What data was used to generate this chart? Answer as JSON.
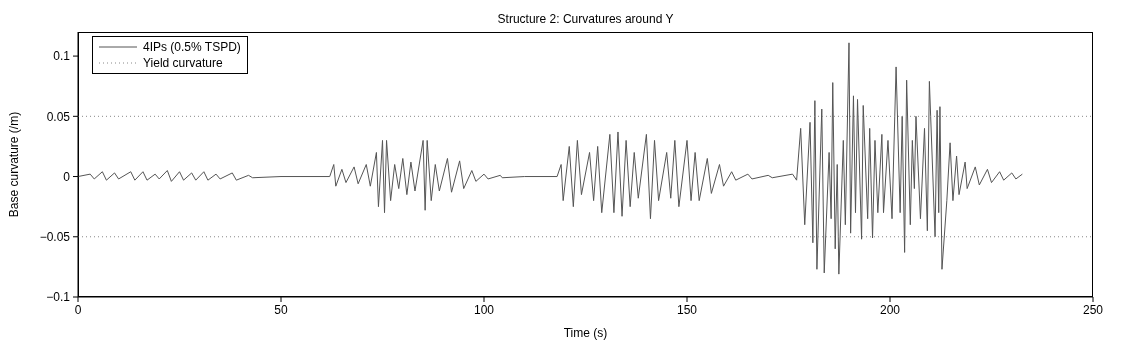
{
  "chart_data": {
    "type": "line",
    "title": "Structure 2: Curvatures around Y",
    "xlabel": "Time (s)",
    "ylabel": "Base curvature (/m)",
    "xlim": [
      0,
      250
    ],
    "xticks": [
      0,
      50,
      100,
      150,
      200,
      250
    ],
    "ylim": [
      -0.1,
      0.12
    ],
    "yticks": [
      -0.1,
      -0.05,
      0,
      0.05,
      0.1
    ],
    "legend": "top left",
    "marker": "none",
    "series": [
      {
        "name": "4IPs (0.5% TSPD)",
        "color": "#555555",
        "line_style": "solid",
        "x": [
          0,
          3,
          4,
          6,
          7,
          9,
          10,
          13,
          14,
          16,
          17,
          19,
          20,
          22,
          23,
          25,
          26,
          28,
          29,
          31,
          32,
          34,
          35,
          38,
          39,
          42,
          43,
          50,
          62,
          63,
          63.5,
          65,
          66,
          68,
          69,
          71,
          72,
          73.5,
          74,
          75,
          75.5,
          76,
          77,
          78,
          79,
          80,
          81,
          82,
          83,
          85,
          85.5,
          86,
          87,
          88,
          89,
          91,
          92,
          94,
          95,
          97,
          98,
          100,
          101,
          104,
          104.5,
          110,
          118,
          119,
          119.5,
          121,
          122,
          123,
          124,
          126,
          127,
          128,
          129,
          131,
          132,
          133,
          134,
          135,
          136,
          137,
          138,
          140,
          141,
          142,
          143,
          145,
          146,
          147,
          148,
          150,
          151,
          152,
          153,
          155,
          156,
          158,
          159,
          161,
          162,
          165,
          166,
          170,
          171,
          176,
          177,
          178,
          179,
          180.3,
          181,
          181.5,
          182,
          183.2,
          183.8,
          185,
          185.5,
          185.9,
          186.5,
          187,
          187.4,
          188.5,
          189,
          189.9,
          190.3,
          191,
          191.5,
          192,
          193,
          193.4,
          194.5,
          195,
          195.7,
          196.3,
          197,
          198,
          198.4,
          199.5,
          200.5,
          201.5,
          202.5,
          203,
          203.6,
          204.1,
          205,
          205.5,
          206,
          206.4,
          207.5,
          208.5,
          209.2,
          209.7,
          211.1,
          211.6,
          212,
          212.3,
          212.8,
          214,
          214.8,
          215.5,
          216.4,
          217,
          218.5,
          219,
          221,
          222,
          224,
          225,
          227,
          228,
          230,
          231,
          232.6
        ],
        "values": [
          0,
          0.002,
          -0.002,
          0.004,
          -0.003,
          0.003,
          -0.002,
          0.004,
          -0.003,
          0.004,
          -0.003,
          0.002,
          -0.002,
          0.005,
          -0.004,
          0.004,
          -0.003,
          0.003,
          -0.003,
          0.004,
          -0.003,
          0.002,
          -0.002,
          0.003,
          -0.003,
          0.001,
          -0.001,
          0,
          0,
          0.01,
          -0.008,
          0.006,
          -0.005,
          0.008,
          -0.006,
          0.01,
          -0.008,
          0.02,
          -0.025,
          0.03,
          -0.03,
          0.03,
          -0.02,
          0.01,
          -0.01,
          0.015,
          -0.015,
          0.012,
          -0.012,
          0.03,
          -0.028,
          0.03,
          -0.02,
          0.01,
          -0.012,
          0.015,
          -0.013,
          0.013,
          -0.01,
          0.005,
          -0.004,
          0.002,
          -0.002,
          0.001,
          -0.001,
          0,
          0,
          0.01,
          -0.02,
          0.025,
          -0.025,
          0.03,
          -0.015,
          0.02,
          -0.02,
          0.025,
          -0.03,
          0.035,
          -0.03,
          0.037,
          -0.033,
          0.03,
          -0.025,
          0.02,
          -0.018,
          0.035,
          -0.035,
          0.03,
          -0.02,
          0.02,
          -0.018,
          0.03,
          -0.025,
          0.03,
          -0.02,
          0.02,
          -0.02,
          0.015,
          -0.014,
          0.01,
          -0.008,
          0.004,
          -0.003,
          0.002,
          -0.002,
          0.001,
          -0.001,
          0.002,
          -0.003,
          0.04,
          -0.04,
          0.045,
          -0.055,
          0.063,
          -0.077,
          0.056,
          -0.08,
          0.02,
          -0.035,
          0.078,
          -0.06,
          0.01,
          -0.081,
          0.03,
          -0.04,
          0.111,
          -0.047,
          0.067,
          -0.03,
          0.064,
          -0.052,
          0.059,
          -0.035,
          0.04,
          -0.051,
          0.03,
          -0.03,
          0.035,
          -0.03,
          0.03,
          -0.035,
          0.091,
          -0.03,
          0.05,
          -0.063,
          0.08,
          -0.04,
          0.03,
          -0.01,
          0.05,
          -0.035,
          0.04,
          -0.045,
          0.079,
          -0.05,
          0.055,
          -0.03,
          0.058,
          -0.077,
          -0.02,
          0.028,
          -0.02,
          0.017,
          -0.015,
          0.012,
          -0.01,
          0.008,
          -0.007,
          0.006,
          -0.005,
          0.004,
          -0.003,
          0.003,
          -0.002,
          0.002
        ]
      },
      {
        "name": "Yield curvature",
        "color": "#888888",
        "line_style": "dotted",
        "x": [
          0,
          250
        ],
        "values": [
          0.05,
          0.05
        ]
      },
      {
        "color": "#888888",
        "line_style": "dotted",
        "x": [
          0,
          250
        ],
        "values": [
          -0.05,
          -0.05
        ]
      }
    ]
  }
}
